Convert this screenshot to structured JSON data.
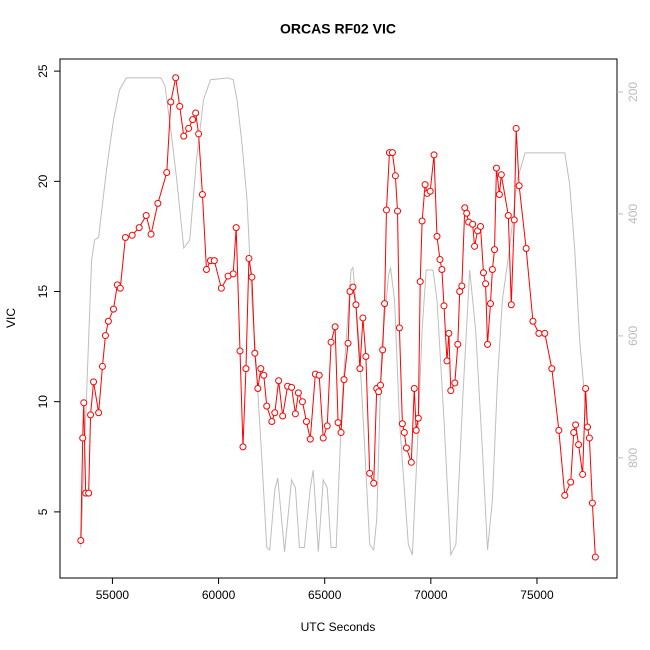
{
  "chart_data": {
    "type": "line",
    "title": "ORCAS RF02 VIC",
    "xlabel": "UTC Seconds",
    "ylabel": "VIC",
    "xlim": [
      52530,
      78770
    ],
    "xticks": [
      55000,
      60000,
      65000,
      70000,
      75000
    ],
    "ylim": [
      2.0,
      25.55
    ],
    "yticks": [
      5,
      10,
      15,
      20,
      25
    ],
    "y2lim": [
      997,
      146
    ],
    "y2ticks": [
      200,
      400,
      600,
      800
    ],
    "series": [
      {
        "color": "#bebebe",
        "axis": "y2",
        "x": [
          53510,
          54020,
          54160,
          54350,
          54720,
          55050,
          55330,
          55650,
          57280,
          57470,
          57750,
          58030,
          58360,
          58640,
          58960,
          59290,
          59620,
          60450,
          60690,
          60870,
          61110,
          61340,
          61570,
          61760,
          62040,
          62270,
          62410,
          62650,
          62790,
          63110,
          63440,
          63620,
          63810,
          64040,
          64320,
          64460,
          64700,
          64930,
          65120,
          65300,
          65540,
          65820,
          66240,
          66330,
          66610,
          66840,
          67120,
          67310,
          67450,
          67680,
          68010,
          68100,
          68290,
          68520,
          68940,
          69130,
          69360,
          69590,
          69780,
          70100,
          70290,
          70620,
          70940,
          71180,
          71500,
          71830,
          72110,
          72430,
          72670,
          72900,
          73140,
          73370,
          73700,
          74070,
          74440,
          76310,
          76540,
          76780,
          77010,
          77340
        ],
        "values": [
          947,
          475,
          443,
          438,
          328,
          246,
          197,
          177,
          177,
          189,
          262,
          344,
          456,
          443,
          311,
          213,
          180,
          177,
          180,
          213,
          287,
          377,
          541,
          639,
          803,
          947,
          951,
          852,
          833,
          954,
          836,
          849,
          947,
          947,
          849,
          820,
          954,
          836,
          849,
          947,
          947,
          705,
          492,
          488,
          606,
          754,
          942,
          951,
          901,
          623,
          500,
          488,
          541,
          738,
          942,
          959,
          787,
          590,
          492,
          492,
          541,
          738,
          959,
          942,
          705,
          492,
          590,
          787,
          951,
          869,
          672,
          541,
          459,
          344,
          300,
          300,
          352,
          459,
          606,
          738
        ]
      },
      {
        "color": "#ff0000",
        "markers": true,
        "x": [
          53510,
          53600,
          53650,
          53740,
          53880,
          53970,
          54110,
          54350,
          54530,
          54670,
          54810,
          55050,
          55230,
          55370,
          55610,
          55930,
          56260,
          56590,
          56820,
          57140,
          57560,
          57750,
          57980,
          58170,
          58360,
          58590,
          58780,
          58920,
          59060,
          59240,
          59430,
          59620,
          59800,
          60130,
          60450,
          60690,
          60830,
          61010,
          61150,
          61290,
          61430,
          61570,
          61710,
          61850,
          61990,
          62130,
          62270,
          62510,
          62650,
          62830,
          63020,
          63250,
          63440,
          63620,
          63760,
          63950,
          64140,
          64320,
          64560,
          64740,
          64930,
          65120,
          65300,
          65490,
          65630,
          65770,
          65910,
          66100,
          66190,
          66330,
          66470,
          66660,
          66800,
          66940,
          67120,
          67310,
          67450,
          67540,
          67630,
          67730,
          67820,
          67910,
          68050,
          68190,
          68330,
          68430,
          68520,
          68660,
          68750,
          68850,
          69080,
          69220,
          69310,
          69410,
          69500,
          69590,
          69730,
          69830,
          69970,
          70150,
          70290,
          70430,
          70520,
          70620,
          70760,
          70850,
          70940,
          71130,
          71270,
          71360,
          71460,
          71600,
          71690,
          71780,
          71970,
          72060,
          72200,
          72340,
          72480,
          72580,
          72670,
          72810,
          72900,
          73000,
          73090,
          73230,
          73320,
          73650,
          73790,
          73930,
          74020,
          74160,
          74490,
          74810,
          75090,
          75370,
          75700,
          76030,
          76310,
          76590,
          76730,
          76820,
          76960,
          77150,
          77290,
          77380,
          77470,
          77610,
          77750
        ],
        "values": [
          3.7,
          8.35,
          9.95,
          5.85,
          5.85,
          9.4,
          10.9,
          9.5,
          11.6,
          13.0,
          13.65,
          14.2,
          15.3,
          15.15,
          17.45,
          17.55,
          17.9,
          18.45,
          17.6,
          19.0,
          20.4,
          23.6,
          24.7,
          23.4,
          22.05,
          22.4,
          22.8,
          23.1,
          22.15,
          19.4,
          16.0,
          16.4,
          16.4,
          15.15,
          15.7,
          15.8,
          17.9,
          12.3,
          7.95,
          11.5,
          16.5,
          15.65,
          12.2,
          10.6,
          11.5,
          11.2,
          9.8,
          9.1,
          9.5,
          10.95,
          9.35,
          10.7,
          10.65,
          9.45,
          10.4,
          10.0,
          9.1,
          8.3,
          11.25,
          11.2,
          8.35,
          8.9,
          12.7,
          13.4,
          9.05,
          8.6,
          11.0,
          12.65,
          15.0,
          15.2,
          14.4,
          11.5,
          13.8,
          12.05,
          6.75,
          6.3,
          10.6,
          10.45,
          10.75,
          12.35,
          14.45,
          18.7,
          21.3,
          21.3,
          20.25,
          18.65,
          13.35,
          9.0,
          8.6,
          7.9,
          7.25,
          10.6,
          8.7,
          9.25,
          15.45,
          18.2,
          19.85,
          19.45,
          19.55,
          21.2,
          17.5,
          16.45,
          16.0,
          14.35,
          11.85,
          13.1,
          10.5,
          10.85,
          12.6,
          15.0,
          15.25,
          18.8,
          18.55,
          18.15,
          18.05,
          17.05,
          17.75,
          17.95,
          15.85,
          15.35,
          12.6,
          14.45,
          16.0,
          16.9,
          20.6,
          19.4,
          20.3,
          18.45,
          14.4,
          18.25,
          22.4,
          19.8,
          16.95,
          13.65,
          13.1,
          13.1,
          11.5,
          8.7,
          5.75,
          6.35,
          8.6,
          8.95,
          8.05,
          6.7,
          10.6,
          8.85,
          8.35,
          5.4,
          2.95
        ]
      }
    ]
  }
}
